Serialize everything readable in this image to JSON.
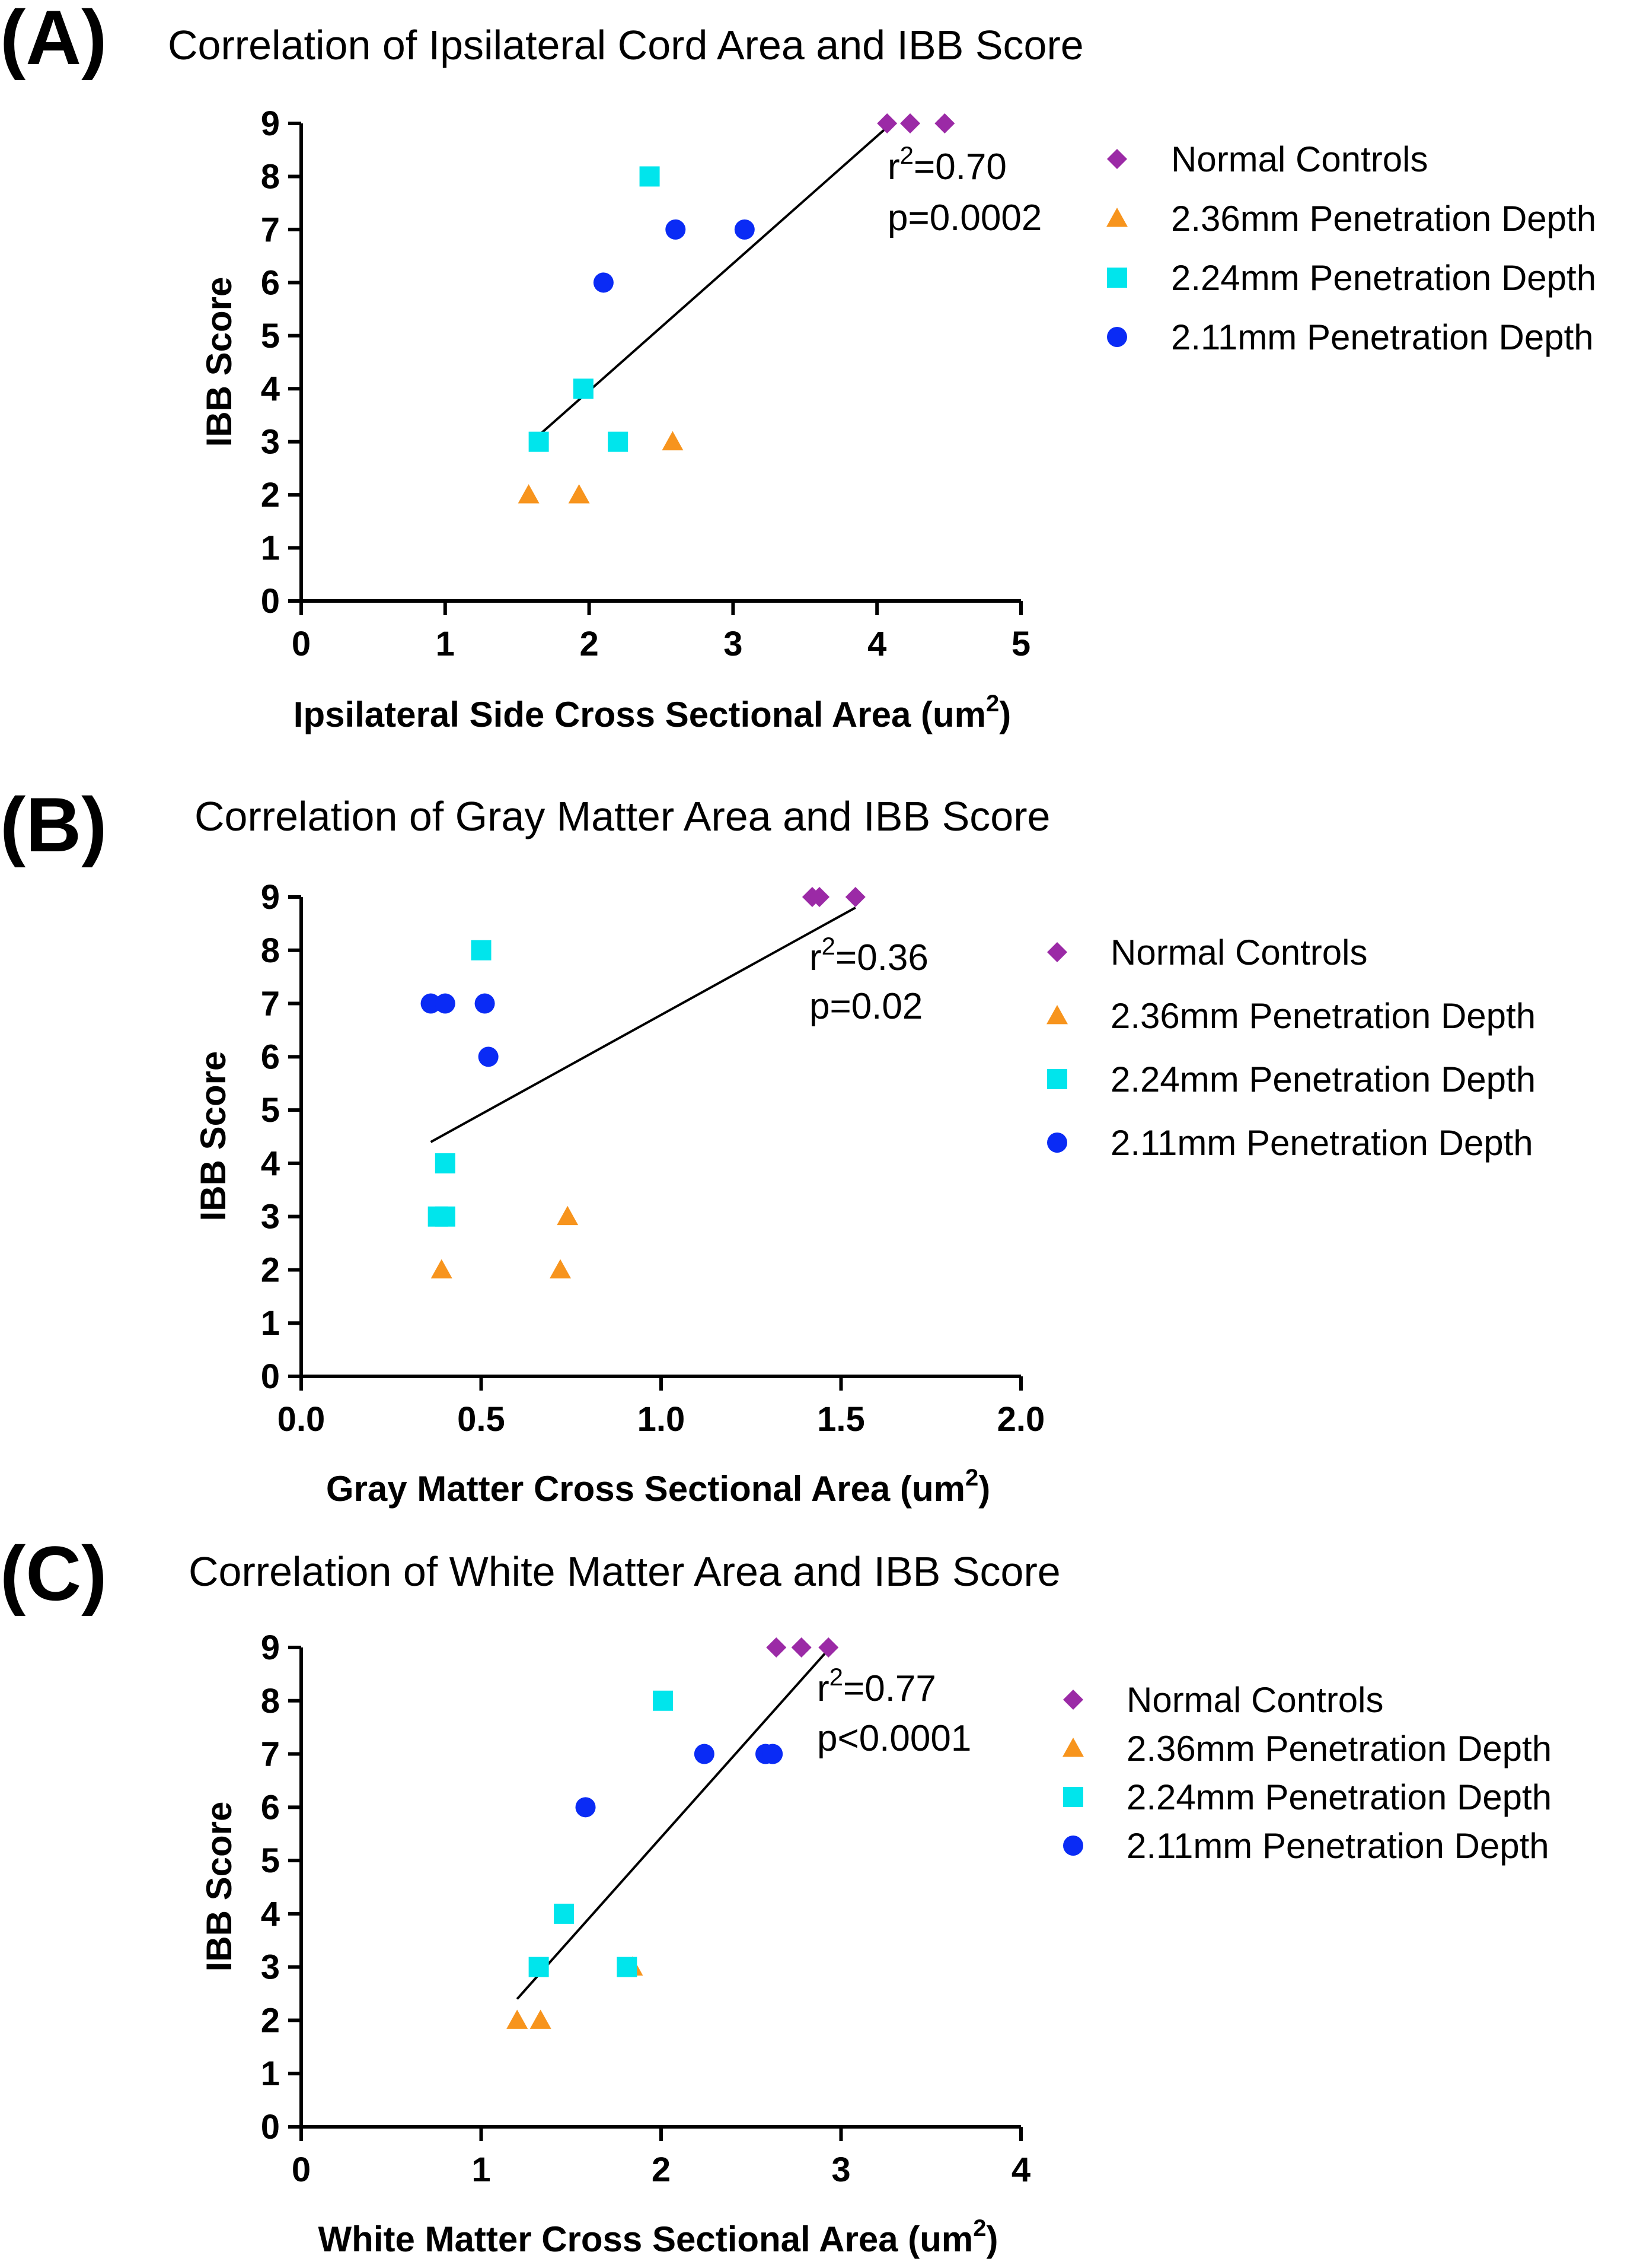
{
  "colors": {
    "normal_controls": "#9b2aa6",
    "depth_236": "#f7941d",
    "depth_224": "#00e5ec",
    "depth_211": "#0a2bf5",
    "axis": "#000000",
    "fit": "#000000"
  },
  "chart_data": [
    {
      "type": "scatter",
      "panel_label": "(A)",
      "title": "Correlation of Ipsilateral Cord Area and IBB Score",
      "xlabel": "Ipsilateral Side Cross Sectional Area (um",
      "xlabel_sup": "2",
      "xlabel_end": ")",
      "ylabel": "IBB Score",
      "xlim": [
        0,
        5
      ],
      "ylim": [
        0,
        9
      ],
      "xticks": [
        0,
        1,
        2,
        3,
        4,
        5
      ],
      "xtick_labels": [
        "0",
        "1",
        "2",
        "3",
        "4",
        "5"
      ],
      "yticks": [
        0,
        1,
        2,
        3,
        4,
        5,
        6,
        7,
        8,
        9
      ],
      "ytick_labels": [
        "0",
        "1",
        "2",
        "3",
        "4",
        "5",
        "6",
        "7",
        "8",
        "9"
      ],
      "stats": {
        "r_prefix": "r",
        "r_sup": "2",
        "r_value": "=0.70",
        "p": "p=0.0002"
      },
      "fit_line": {
        "x": [
          1.6,
          4.1
        ],
        "y": [
          3.0,
          9.0
        ]
      },
      "series": [
        {
          "name": "Normal Controls",
          "marker": "diamond",
          "color_key": "normal_controls",
          "points": [
            [
              4.07,
              9
            ],
            [
              4.23,
              9
            ],
            [
              4.47,
              9
            ]
          ]
        },
        {
          "name": "2.36mm Penetration Depth",
          "marker": "triangle",
          "color_key": "depth_236",
          "points": [
            [
              1.58,
              2
            ],
            [
              1.93,
              2
            ],
            [
              2.58,
              3
            ]
          ]
        },
        {
          "name": "2.24mm Penetration Depth",
          "marker": "square",
          "color_key": "depth_224",
          "points": [
            [
              1.65,
              3
            ],
            [
              1.96,
              4
            ],
            [
              2.2,
              3
            ],
            [
              2.42,
              8
            ]
          ]
        },
        {
          "name": "2.11mm Penetration Depth",
          "marker": "circle",
          "color_key": "depth_211",
          "points": [
            [
              2.1,
              6
            ],
            [
              2.6,
              7
            ],
            [
              3.08,
              7
            ]
          ]
        }
      ]
    },
    {
      "type": "scatter",
      "panel_label": "(B)",
      "title": "Correlation of Gray Matter Area and IBB Score",
      "xlabel": "Gray Matter Cross Sectional Area (um",
      "xlabel_sup": "2",
      "xlabel_end": ")",
      "ylabel": "IBB Score",
      "xlim": [
        0,
        2
      ],
      "ylim": [
        0,
        9
      ],
      "xticks": [
        0,
        0.5,
        1,
        1.5,
        2
      ],
      "xtick_labels": [
        "0.0",
        "0.5",
        "1.0",
        "1.5",
        "2.0"
      ],
      "yticks": [
        0,
        1,
        2,
        3,
        4,
        5,
        6,
        7,
        8,
        9
      ],
      "ytick_labels": [
        "0",
        "1",
        "2",
        "3",
        "4",
        "5",
        "6",
        "7",
        "8",
        "9"
      ],
      "stats": {
        "r_prefix": "r",
        "r_sup": "2",
        "r_value": "=0.36",
        "p": "p=0.02"
      },
      "fit_line": {
        "x": [
          0.36,
          1.54
        ],
        "y": [
          4.4,
          8.8
        ]
      },
      "series": [
        {
          "name": "Normal Controls",
          "marker": "diamond",
          "color_key": "normal_controls",
          "points": [
            [
              1.42,
              9
            ],
            [
              1.44,
              9
            ],
            [
              1.54,
              9
            ]
          ]
        },
        {
          "name": "2.36mm Penetration Depth",
          "marker": "triangle",
          "color_key": "depth_236",
          "points": [
            [
              0.39,
              2
            ],
            [
              0.72,
              2
            ],
            [
              0.74,
              3
            ]
          ]
        },
        {
          "name": "2.24mm Penetration Depth",
          "marker": "square",
          "color_key": "depth_224",
          "points": [
            [
              0.38,
              3
            ],
            [
              0.4,
              3
            ],
            [
              0.4,
              4
            ],
            [
              0.5,
              8
            ]
          ]
        },
        {
          "name": "2.11mm Penetration Depth",
          "marker": "circle",
          "color_key": "depth_211",
          "points": [
            [
              0.36,
              7
            ],
            [
              0.4,
              7
            ],
            [
              0.51,
              7
            ],
            [
              0.52,
              6
            ]
          ]
        }
      ]
    },
    {
      "type": "scatter",
      "panel_label": "(C)",
      "title": "Correlation of White Matter Area and IBB Score",
      "xlabel": "White Matter Cross Sectional Area (um",
      "xlabel_sup": "2",
      "xlabel_end": ")",
      "ylabel": "IBB Score",
      "xlim": [
        0,
        4
      ],
      "ylim": [
        0,
        9
      ],
      "xticks": [
        0,
        1,
        2,
        3,
        4
      ],
      "xtick_labels": [
        "0",
        "1",
        "2",
        "3",
        "4"
      ],
      "yticks": [
        0,
        1,
        2,
        3,
        4,
        5,
        6,
        7,
        8,
        9
      ],
      "ytick_labels": [
        "0",
        "1",
        "2",
        "3",
        "4",
        "5",
        "6",
        "7",
        "8",
        "9"
      ],
      "stats": {
        "r_prefix": "r",
        "r_sup": "2",
        "r_value": "=0.77",
        "p": "p<0.0001"
      },
      "fit_line": {
        "x": [
          1.2,
          2.94
        ],
        "y": [
          2.4,
          9.0
        ]
      },
      "series": [
        {
          "name": "Normal Controls",
          "marker": "diamond",
          "color_key": "normal_controls",
          "points": [
            [
              2.64,
              9
            ],
            [
              2.78,
              9
            ],
            [
              2.93,
              9
            ]
          ]
        },
        {
          "name": "2.36mm Penetration Depth",
          "marker": "triangle",
          "color_key": "depth_236",
          "points": [
            [
              1.2,
              2
            ],
            [
              1.33,
              2
            ],
            [
              1.84,
              3
            ]
          ]
        },
        {
          "name": "2.24mm Penetration Depth",
          "marker": "square",
          "color_key": "depth_224",
          "points": [
            [
              1.32,
              3
            ],
            [
              1.46,
              4
            ],
            [
              1.81,
              3
            ],
            [
              2.01,
              8
            ]
          ]
        },
        {
          "name": "2.11mm Penetration Depth",
          "marker": "circle",
          "color_key": "depth_211",
          "points": [
            [
              1.58,
              6
            ],
            [
              2.24,
              7
            ],
            [
              2.58,
              7
            ],
            [
              2.62,
              7
            ]
          ]
        }
      ]
    }
  ]
}
